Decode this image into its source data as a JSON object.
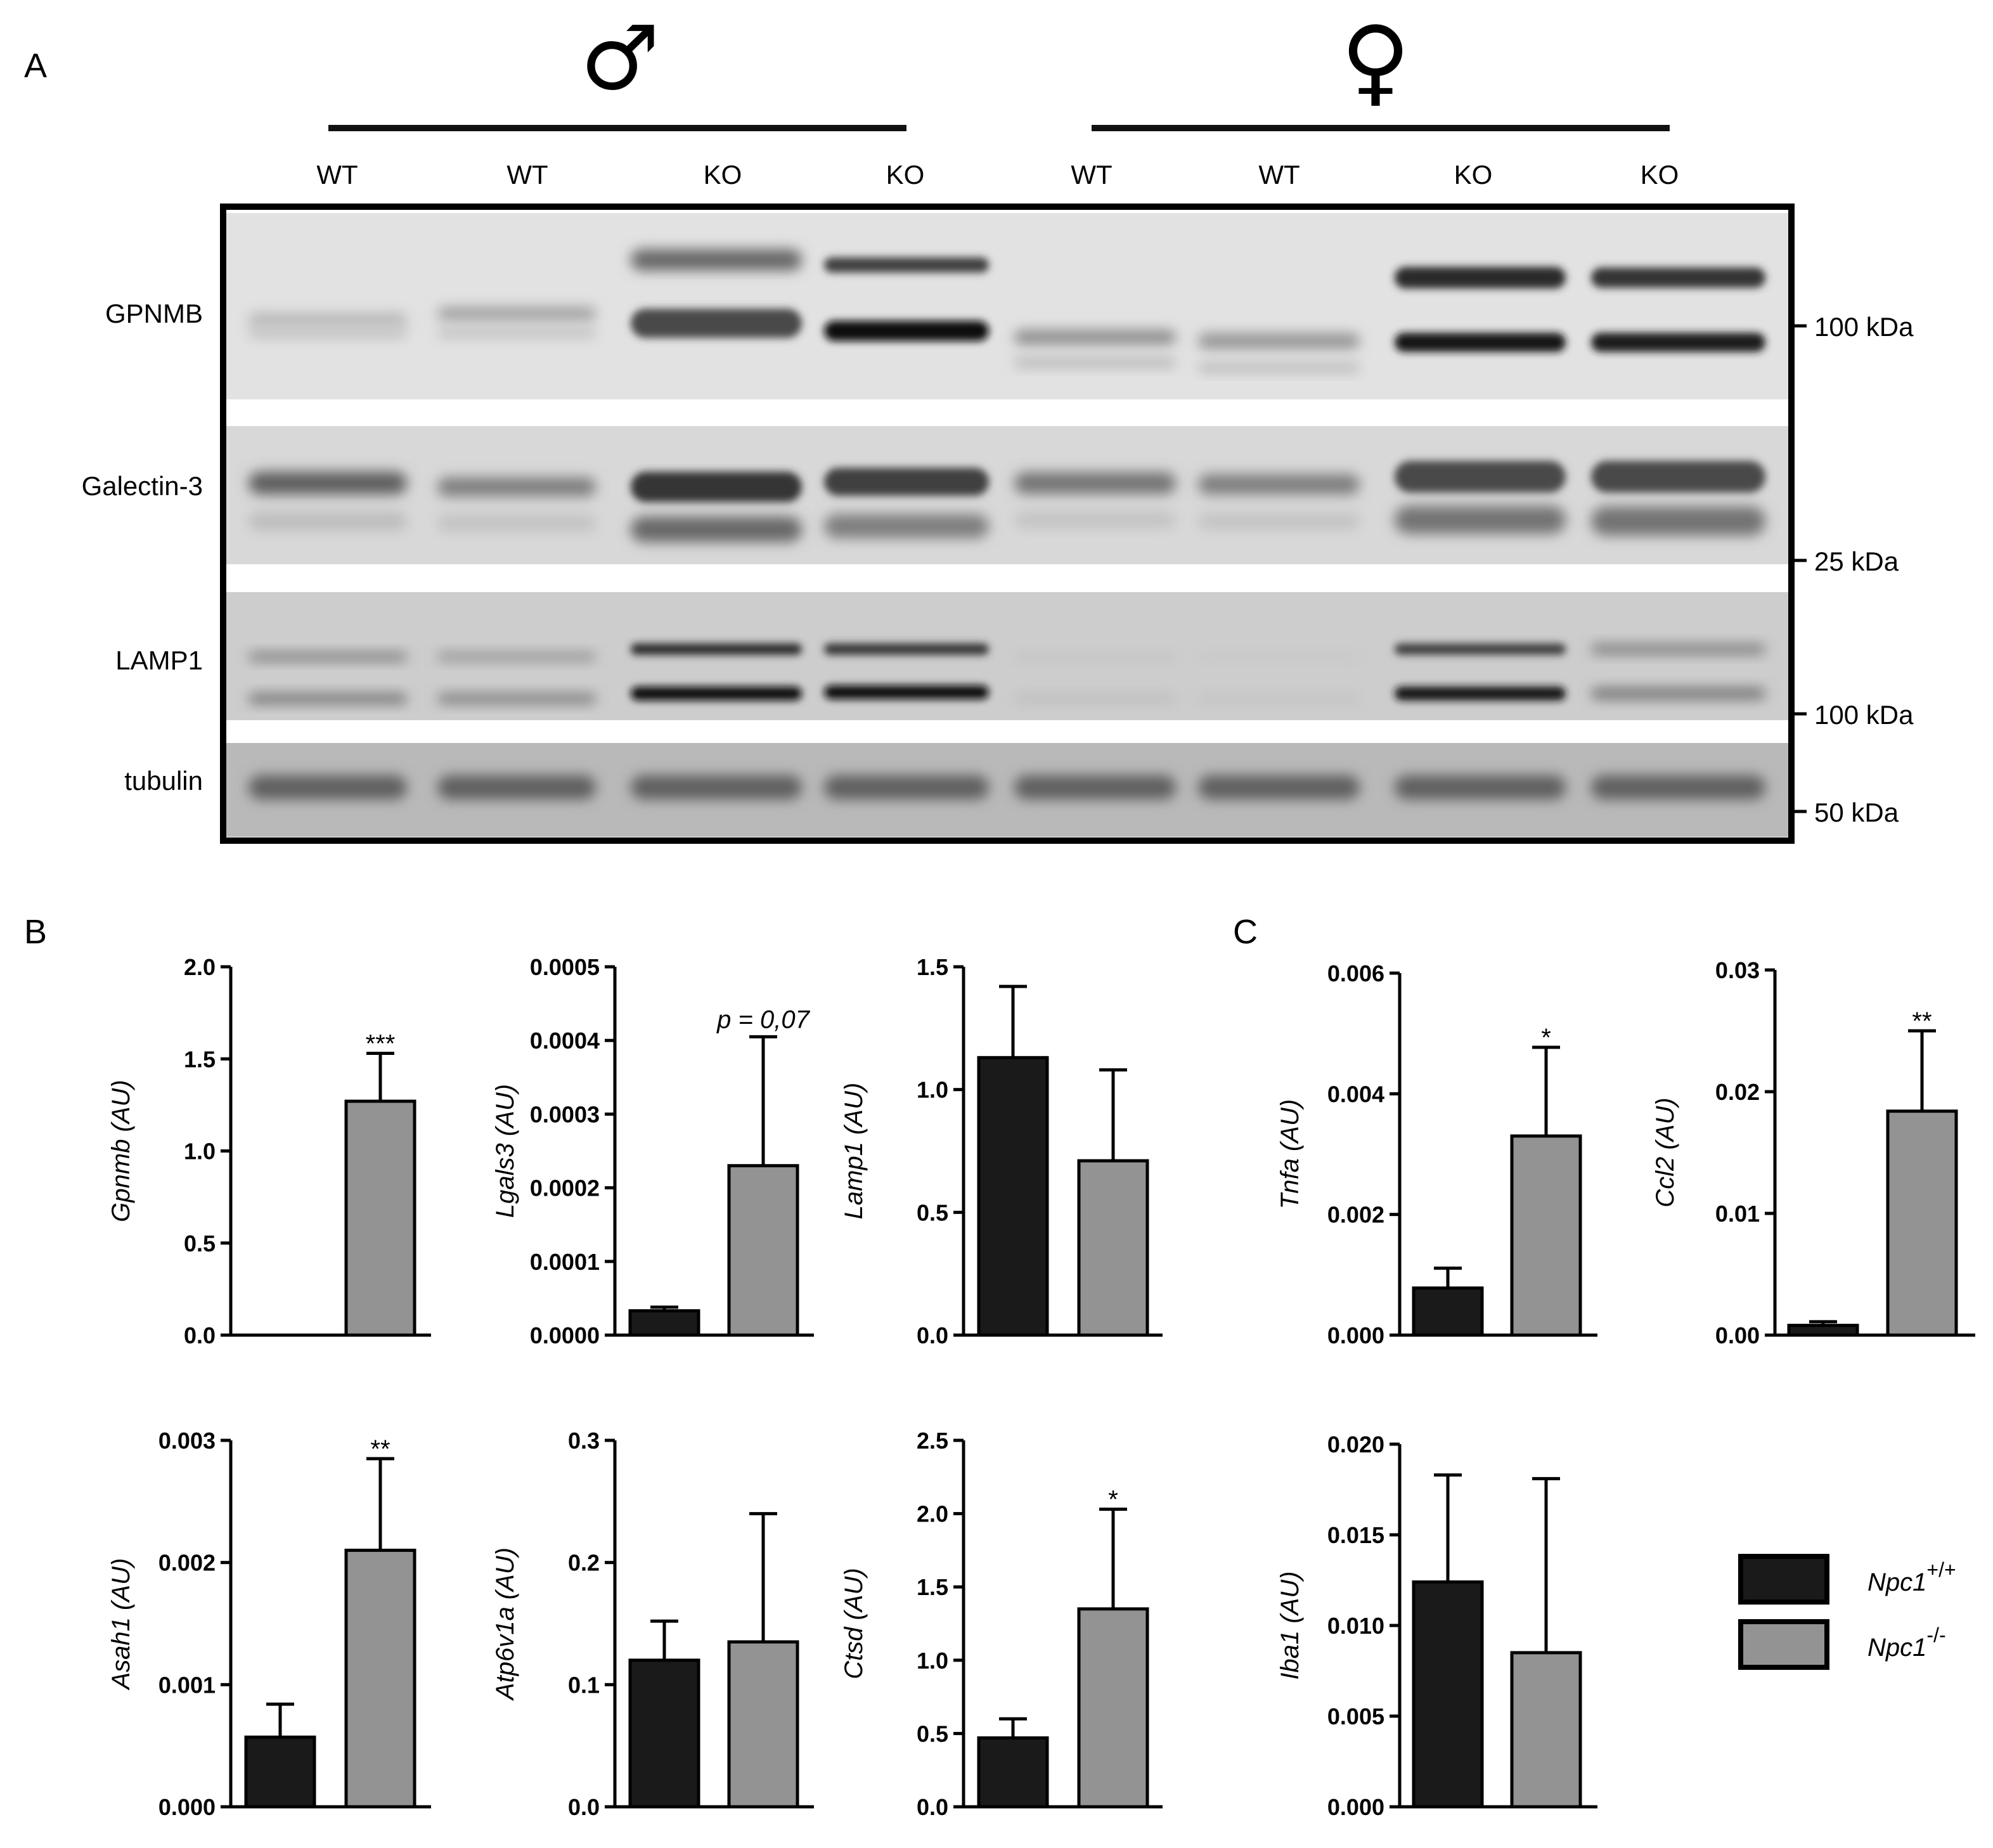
{
  "panel_labels": {
    "a": "A",
    "b": "B",
    "c": "C"
  },
  "sex_symbols": {
    "male": "♂",
    "female": "♀"
  },
  "lanes": [
    "WT",
    "WT",
    "KO",
    "KO",
    "WT",
    "WT",
    "KO",
    "KO"
  ],
  "blots": [
    {
      "label": "GPNMB"
    },
    {
      "label": "Galectin-3"
    },
    {
      "label": "LAMP1"
    },
    {
      "label": "tubulin"
    }
  ],
  "markers": [
    "100 kDa",
    "25 kDa",
    "100 kDa",
    "50 kDa"
  ],
  "legend": [
    {
      "gene": "Npc1",
      "sup": "+/+",
      "color": "#1a1a1a"
    },
    {
      "gene": "Npc1",
      "sup": "-/-",
      "color": "#939393"
    }
  ],
  "colors": {
    "wt": "#1a1a1a",
    "ko": "#939393"
  },
  "chart_data": [
    {
      "type": "bar",
      "panel": "B",
      "ylabel": "Gpnmb (AU)",
      "ylim": [
        0,
        2.0
      ],
      "ticks": [
        "0.0",
        "0.5",
        "1.0",
        "1.5",
        "2.0"
      ],
      "categories": [
        "Npc1+/+",
        "Npc1-/-"
      ],
      "values": [
        0,
        1.27
      ],
      "errors": [
        0,
        0.26
      ],
      "annotation": "***"
    },
    {
      "type": "bar",
      "panel": "B",
      "ylabel": "Lgals3 (AU)",
      "ylim": [
        0,
        0.0005
      ],
      "ticks": [
        "0.0000",
        "0.0001",
        "0.0002",
        "0.0003",
        "0.0004",
        "0.0005"
      ],
      "categories": [
        "Npc1+/+",
        "Npc1-/-"
      ],
      "values": [
        3.3e-05,
        0.00023
      ],
      "errors": [
        5e-06,
        0.000175
      ],
      "annotation": "p = 0,07"
    },
    {
      "type": "bar",
      "panel": "B",
      "ylabel": "Lamp1 (AU)",
      "ylim": [
        0,
        1.5
      ],
      "ticks": [
        "0.0",
        "0.5",
        "1.0",
        "1.5"
      ],
      "categories": [
        "Npc1+/+",
        "Npc1-/-"
      ],
      "values": [
        1.13,
        0.71
      ],
      "errors": [
        0.29,
        0.37
      ],
      "annotation": ""
    },
    {
      "type": "bar",
      "panel": "C",
      "ylabel": "Tnfa (AU)",
      "ylim": [
        0,
        0.006
      ],
      "ticks": [
        "0.000",
        "0.002",
        "0.004",
        "0.006"
      ],
      "categories": [
        "Npc1+/+",
        "Npc1-/-"
      ],
      "values": [
        0.00078,
        0.0033
      ],
      "errors": [
        0.00033,
        0.00147
      ],
      "annotation": "*"
    },
    {
      "type": "bar",
      "panel": "C",
      "ylabel": "Ccl2 (AU)",
      "ylim": [
        0,
        0.03
      ],
      "ticks": [
        "0.00",
        "0.01",
        "0.02",
        "0.03"
      ],
      "categories": [
        "Npc1+/+",
        "Npc1-/-"
      ],
      "values": [
        0.0008,
        0.0184
      ],
      "errors": [
        0.0003,
        0.0066
      ],
      "annotation": "**"
    },
    {
      "type": "bar",
      "panel": "B",
      "ylabel": "Asah1 (AU)",
      "ylim": [
        0,
        0.003
      ],
      "ticks": [
        "0.000",
        "0.001",
        "0.002",
        "0.003"
      ],
      "categories": [
        "Npc1+/+",
        "Npc1-/-"
      ],
      "values": [
        0.00057,
        0.0021
      ],
      "errors": [
        0.00027,
        0.00075
      ],
      "annotation": "**"
    },
    {
      "type": "bar",
      "panel": "B",
      "ylabel": "Atp6v1a (AU)",
      "ylim": [
        0,
        0.3
      ],
      "ticks": [
        "0.0",
        "0.1",
        "0.2",
        "0.3"
      ],
      "categories": [
        "Npc1+/+",
        "Npc1-/-"
      ],
      "values": [
        0.12,
        0.135
      ],
      "errors": [
        0.032,
        0.105
      ],
      "annotation": ""
    },
    {
      "type": "bar",
      "panel": "B",
      "ylabel": "Ctsd (AU)",
      "ylim": [
        0,
        2.5
      ],
      "ticks": [
        "0.0",
        "0.5",
        "1.0",
        "1.5",
        "2.0",
        "2.5"
      ],
      "categories": [
        "Npc1+/+",
        "Npc1-/-"
      ],
      "values": [
        0.47,
        1.35
      ],
      "errors": [
        0.13,
        0.68
      ],
      "annotation": "*"
    },
    {
      "type": "bar",
      "panel": "C",
      "ylabel": "Iba1 (AU)",
      "ylim": [
        0,
        0.02
      ],
      "ticks": [
        "0.000",
        "0.005",
        "0.010",
        "0.015",
        "0.020"
      ],
      "categories": [
        "Npc1+/+",
        "Npc1-/-"
      ],
      "values": [
        0.0124,
        0.0085
      ],
      "errors": [
        0.0059,
        0.0096
      ],
      "annotation": ""
    }
  ]
}
